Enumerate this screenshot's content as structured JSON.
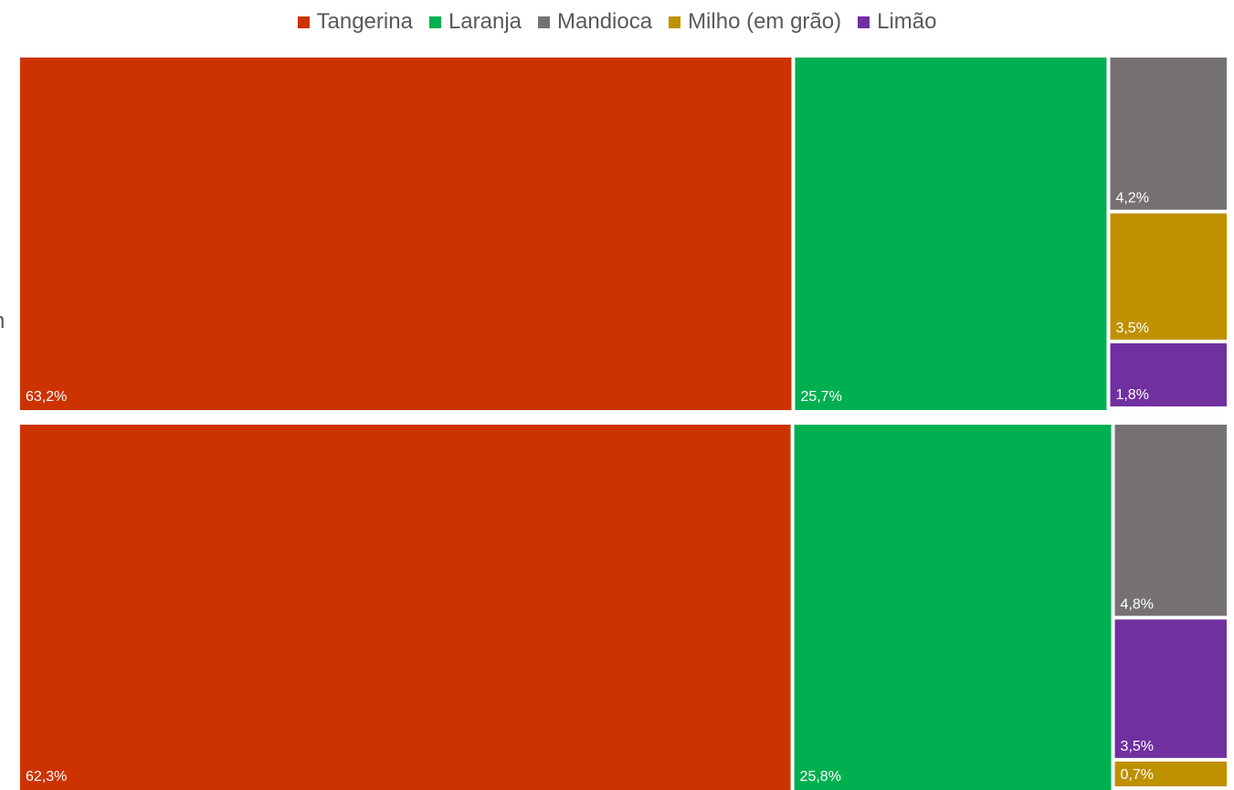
{
  "legend": [
    {
      "name": "Tangerina",
      "color": "#CC3300"
    },
    {
      "name": "Laranja",
      "color": "#00B050"
    },
    {
      "name": "Mandioca",
      "color": "#767171"
    },
    {
      "name": "Milho (em grão)",
      "color": "#BF9000"
    },
    {
      "name": "Limão",
      "color": "#7030A0"
    }
  ],
  "clipped_label": "n",
  "chart_data": {
    "type": "treemap",
    "title": "",
    "groups": [
      {
        "name": "",
        "items": [
          {
            "category": "Tangerina",
            "value": 63.2,
            "label": "63,2%"
          },
          {
            "category": "Laranja",
            "value": 25.7,
            "label": "25,7%"
          },
          {
            "category": "Mandioca",
            "value": 4.2,
            "label": "4,2%"
          },
          {
            "category": "Milho (em grão)",
            "value": 3.5,
            "label": "3,5%"
          },
          {
            "category": "Limão",
            "value": 1.8,
            "label": "1,8%"
          }
        ]
      },
      {
        "name": "",
        "items": [
          {
            "category": "Tangerina",
            "value": 62.3,
            "label": "62,3%"
          },
          {
            "category": "Laranja",
            "value": 25.8,
            "label": "25,8%"
          },
          {
            "category": "Mandioca",
            "value": 4.8,
            "label": "4,8%"
          },
          {
            "category": "Limão",
            "value": 3.5,
            "label": "3,5%"
          },
          {
            "category": "Milho (em grão)",
            "value": 0.7,
            "label": "0,7%"
          }
        ]
      }
    ]
  }
}
